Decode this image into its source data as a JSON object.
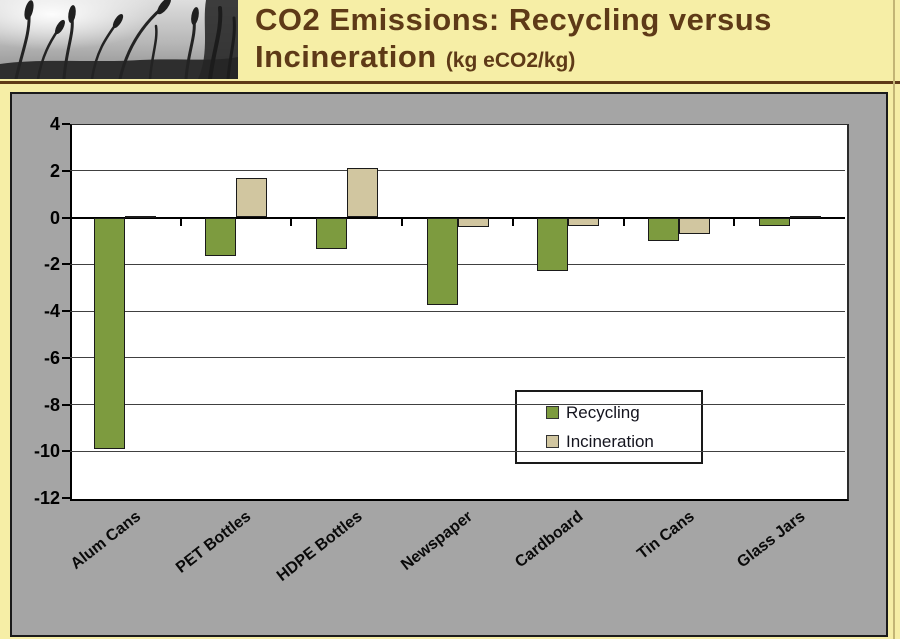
{
  "header": {
    "title_line1": "CO2 Emissions: Recycling versus",
    "title_line2": "Incineration ",
    "title_suffix": "(kg eCO2/kg)"
  },
  "colors": {
    "page_bg": "#f6eea6",
    "title_text": "#5e3a17",
    "panel_bg": "#a5a5a5",
    "panel_border": "#1a1a1a",
    "plot_bg": "#ffffff",
    "gridline": "#404040",
    "zero_axis": "#000000",
    "recycling": "#7d9b3f",
    "incineration": "#d1c6a0",
    "bar_outline": "#1a1a1a",
    "legend_bg": "#ffffff",
    "legend_text": "#14141e"
  },
  "chart_data": {
    "type": "bar",
    "title": "CO2 Emissions: Recycling versus Incineration (kg eCO2/kg)",
    "xlabel": "",
    "ylabel": "",
    "categories": [
      "Alum Cans",
      "PET Bottles",
      "HDPE Bottles",
      "Newspaper",
      "Cardboard",
      "Tin Cans",
      "Glass Jars"
    ],
    "series": [
      {
        "name": "Recycling",
        "color_key": "recycling",
        "values": [
          -9.9,
          -1.65,
          -1.35,
          -3.75,
          -2.3,
          -1.0,
          -0.35
        ]
      },
      {
        "name": "Incineration",
        "color_key": "incineration",
        "values": [
          0.05,
          1.7,
          2.1,
          -0.4,
          -0.35,
          -0.7,
          0.05
        ]
      }
    ],
    "ylim": [
      -12,
      4
    ],
    "yticks": [
      4,
      2,
      0,
      -2,
      -4,
      -6,
      -8,
      -10,
      -12
    ],
    "grid": true,
    "legend_position": "inside-right"
  },
  "legend": {
    "items": [
      {
        "label": "Recycling"
      },
      {
        "label": "Incineration"
      }
    ]
  }
}
